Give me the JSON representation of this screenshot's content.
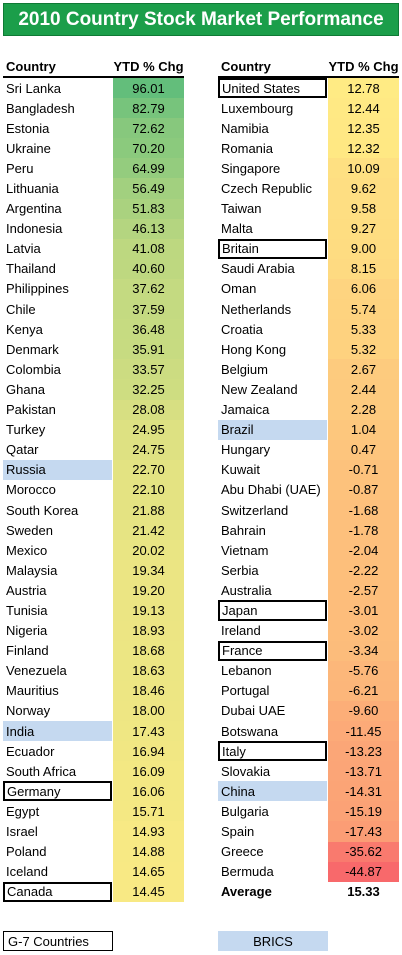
{
  "title": "2010 Country Stock Market Performance",
  "headers": {
    "country": "Country",
    "ytd": "YTD % Chg"
  },
  "legend": {
    "g7": "G-7 Countries",
    "brics": "BRICS"
  },
  "average": {
    "label": "Average",
    "value": "15.33"
  },
  "colors": {
    "title_bg": "#1b9e4a",
    "bric": "#c5d9f0",
    "high": "#63be7b",
    "mid": "#ffeb84",
    "low": "#f8696b"
  },
  "chart_data": {
    "type": "table",
    "columns": [
      "Country",
      "YTD % Chg"
    ],
    "rows": [
      {
        "country": "Sri Lanka",
        "value": 96.01,
        "group": ""
      },
      {
        "country": "Bangladesh",
        "value": 82.79,
        "group": ""
      },
      {
        "country": "Estonia",
        "value": 72.62,
        "group": ""
      },
      {
        "country": "Ukraine",
        "value": 70.2,
        "group": ""
      },
      {
        "country": "Peru",
        "value": 64.99,
        "group": ""
      },
      {
        "country": "Lithuania",
        "value": 56.49,
        "group": ""
      },
      {
        "country": "Argentina",
        "value": 51.83,
        "group": ""
      },
      {
        "country": "Indonesia",
        "value": 46.13,
        "group": ""
      },
      {
        "country": "Latvia",
        "value": 41.08,
        "group": ""
      },
      {
        "country": "Thailand",
        "value": 40.6,
        "group": ""
      },
      {
        "country": "Philippines",
        "value": 37.62,
        "group": ""
      },
      {
        "country": "Chile",
        "value": 37.59,
        "group": ""
      },
      {
        "country": "Kenya",
        "value": 36.48,
        "group": ""
      },
      {
        "country": "Denmark",
        "value": 35.91,
        "group": ""
      },
      {
        "country": "Colombia",
        "value": 33.57,
        "group": ""
      },
      {
        "country": "Ghana",
        "value": 32.25,
        "group": ""
      },
      {
        "country": "Pakistan",
        "value": 28.08,
        "group": ""
      },
      {
        "country": "Turkey",
        "value": 24.95,
        "group": ""
      },
      {
        "country": "Qatar",
        "value": 24.75,
        "group": ""
      },
      {
        "country": "Russia",
        "value": 22.7,
        "group": "bric"
      },
      {
        "country": "Morocco",
        "value": 22.1,
        "group": ""
      },
      {
        "country": "South Korea",
        "value": 21.88,
        "group": ""
      },
      {
        "country": "Sweden",
        "value": 21.42,
        "group": ""
      },
      {
        "country": "Mexico",
        "value": 20.02,
        "group": ""
      },
      {
        "country": "Malaysia",
        "value": 19.34,
        "group": ""
      },
      {
        "country": "Austria",
        "value": 19.2,
        "group": ""
      },
      {
        "country": "Tunisia",
        "value": 19.13,
        "group": ""
      },
      {
        "country": "Nigeria",
        "value": 18.93,
        "group": ""
      },
      {
        "country": "Finland",
        "value": 18.68,
        "group": ""
      },
      {
        "country": "Venezuela",
        "value": 18.63,
        "group": ""
      },
      {
        "country": "Mauritius",
        "value": 18.46,
        "group": ""
      },
      {
        "country": "Norway",
        "value": 18.0,
        "group": ""
      },
      {
        "country": "India",
        "value": 17.43,
        "group": "bric"
      },
      {
        "country": "Ecuador",
        "value": 16.94,
        "group": ""
      },
      {
        "country": "South Africa",
        "value": 16.09,
        "group": ""
      },
      {
        "country": "Germany",
        "value": 16.06,
        "group": "g7"
      },
      {
        "country": "Egypt",
        "value": 15.71,
        "group": ""
      },
      {
        "country": "Israel",
        "value": 14.93,
        "group": ""
      },
      {
        "country": "Poland",
        "value": 14.88,
        "group": ""
      },
      {
        "country": "Iceland",
        "value": 14.65,
        "group": ""
      },
      {
        "country": "Canada",
        "value": 14.45,
        "group": "g7"
      },
      {
        "country": "United States",
        "value": 12.78,
        "group": "g7"
      },
      {
        "country": "Luxembourg",
        "value": 12.44,
        "group": ""
      },
      {
        "country": "Namibia",
        "value": 12.35,
        "group": ""
      },
      {
        "country": "Romania",
        "value": 12.32,
        "group": ""
      },
      {
        "country": "Singapore",
        "value": 10.09,
        "group": ""
      },
      {
        "country": "Czech Republic",
        "value": 9.62,
        "group": ""
      },
      {
        "country": "Taiwan",
        "value": 9.58,
        "group": ""
      },
      {
        "country": "Malta",
        "value": 9.27,
        "group": ""
      },
      {
        "country": "Britain",
        "value": 9.0,
        "group": "g7"
      },
      {
        "country": "Saudi Arabia",
        "value": 8.15,
        "group": ""
      },
      {
        "country": "Oman",
        "value": 6.06,
        "group": ""
      },
      {
        "country": "Netherlands",
        "value": 5.74,
        "group": ""
      },
      {
        "country": "Croatia",
        "value": 5.33,
        "group": ""
      },
      {
        "country": "Hong Kong",
        "value": 5.32,
        "group": ""
      },
      {
        "country": "Belgium",
        "value": 2.67,
        "group": ""
      },
      {
        "country": "New Zealand",
        "value": 2.44,
        "group": ""
      },
      {
        "country": "Jamaica",
        "value": 2.28,
        "group": ""
      },
      {
        "country": "Brazil",
        "value": 1.04,
        "group": "bric"
      },
      {
        "country": "Hungary",
        "value": 0.47,
        "group": ""
      },
      {
        "country": "Kuwait",
        "value": -0.71,
        "group": ""
      },
      {
        "country": "Abu Dhabi (UAE)",
        "value": -0.87,
        "group": ""
      },
      {
        "country": "Switzerland",
        "value": -1.68,
        "group": ""
      },
      {
        "country": "Bahrain",
        "value": -1.78,
        "group": ""
      },
      {
        "country": "Vietnam",
        "value": -2.04,
        "group": ""
      },
      {
        "country": "Serbia",
        "value": -2.22,
        "group": ""
      },
      {
        "country": "Australia",
        "value": -2.57,
        "group": ""
      },
      {
        "country": "Japan",
        "value": -3.01,
        "group": "g7"
      },
      {
        "country": "Ireland",
        "value": -3.02,
        "group": ""
      },
      {
        "country": "France",
        "value": -3.34,
        "group": "g7"
      },
      {
        "country": "Lebanon",
        "value": -5.76,
        "group": ""
      },
      {
        "country": "Portugal",
        "value": -6.21,
        "group": ""
      },
      {
        "country": "Dubai UAE",
        "value": -9.6,
        "group": ""
      },
      {
        "country": "Botswana",
        "value": -11.45,
        "group": ""
      },
      {
        "country": "Italy",
        "value": -13.23,
        "group": "g7"
      },
      {
        "country": "Slovakia",
        "value": -13.71,
        "group": ""
      },
      {
        "country": "China",
        "value": -14.31,
        "group": "bric"
      },
      {
        "country": "Bulgaria",
        "value": -15.19,
        "group": ""
      },
      {
        "country": "Spain",
        "value": -17.43,
        "group": ""
      },
      {
        "country": "Greece",
        "value": -35.62,
        "group": ""
      },
      {
        "country": "Bermuda",
        "value": -44.87,
        "group": ""
      }
    ]
  }
}
